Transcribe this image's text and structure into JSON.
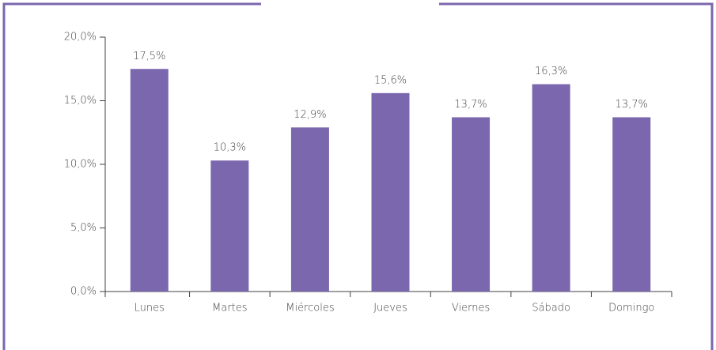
{
  "chart_data": {
    "type": "bar",
    "categories": [
      "Lunes",
      "Martes",
      "Miércoles",
      "Jueves",
      "Viernes",
      "Sábado",
      "Domingo"
    ],
    "values": [
      17.5,
      10.3,
      12.9,
      15.6,
      13.7,
      16.3,
      13.7
    ],
    "value_labels": [
      "17,5%",
      "10,3%",
      "12,9%",
      "15,6%",
      "13,7%",
      "16,3%",
      "13,7%"
    ],
    "color": "#7b67ae",
    "ylim": [
      0,
      20
    ],
    "yticks": [
      {
        "value": 0,
        "label": "0,0%"
      },
      {
        "value": 5,
        "label": "5,0%"
      },
      {
        "value": 10,
        "label": "10,0%"
      },
      {
        "value": 15,
        "label": "15,0%"
      },
      {
        "value": 20,
        "label": "20,0%"
      }
    ],
    "grid": false
  }
}
